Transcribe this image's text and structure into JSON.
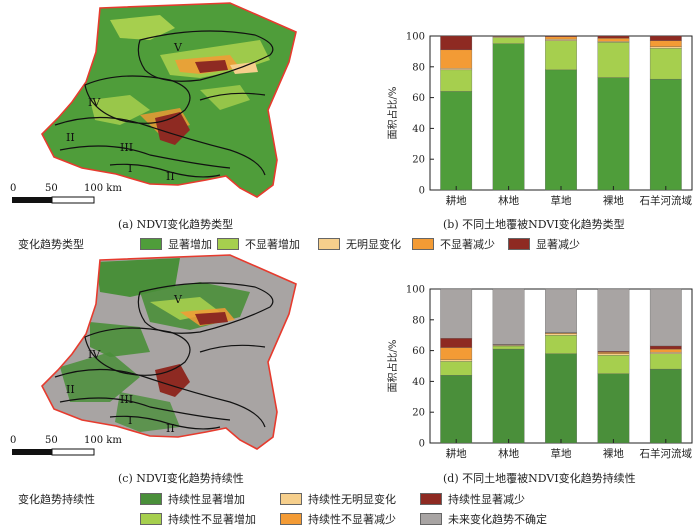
{
  "colors": {
    "sig_inc": "#4f9d3a",
    "insig_inc": "#a6cf4e",
    "nochange": "#f6cf8c",
    "insig_dec": "#f39b35",
    "sig_dec": "#8e2a22",
    "pers_sig_inc": "#4a8f3a",
    "pers_insig_inc": "#a6cf4e",
    "pers_nochange": "#f6cf8c",
    "pers_insig_dec": "#f39b35",
    "pers_sig_dec": "#8e2a22",
    "undetermined": "#a8a4a3",
    "boundary": "#e63b2e",
    "zone_line": "#111111"
  },
  "maps": [
    {
      "caption": "(a) NDVI变化趋势类型",
      "scale_labels": [
        "0",
        "50",
        "100 km"
      ],
      "zones": [
        "V",
        "IV",
        "II",
        "III",
        "I",
        "II"
      ]
    },
    {
      "caption": "(c) NDVI变化趋势持续性",
      "scale_labels": [
        "0",
        "50",
        "100 km"
      ],
      "zones": [
        "V",
        "IV",
        "II",
        "III",
        "I",
        "II"
      ]
    }
  ],
  "legend1": {
    "title": "变化趋势类型",
    "items": [
      "显著增加",
      "不显著增加",
      "无明显变化",
      "不显著减少",
      "显著减少"
    ]
  },
  "legend2": {
    "title": "变化趋势持续性",
    "items": [
      "持续性显著增加",
      "持续性无明显变化",
      "持续性显著减少",
      "持续性不显著增加",
      "持续性不显著减少",
      "未来变化趋势不确定"
    ]
  },
  "chart_data": [
    {
      "type": "bar",
      "stacked": true,
      "title": "(b) 不同土地覆被NDVI变化趋势类型",
      "ylabel": "面积占比/%",
      "ylim": [
        0,
        100
      ],
      "yticks": [
        "0",
        "20",
        "40",
        "60",
        "80",
        "100"
      ],
      "categories": [
        "耕地",
        "林地",
        "草地",
        "裸地",
        "石羊河流域"
      ],
      "series": [
        {
          "name": "显著增加",
          "values": [
            64,
            95,
            78,
            73,
            72
          ]
        },
        {
          "name": "不显著增加",
          "values": [
            14,
            4,
            19,
            23,
            20
          ]
        },
        {
          "name": "无明显变化",
          "values": [
            1,
            0.5,
            1,
            0.5,
            1
          ]
        },
        {
          "name": "不显著减少",
          "values": [
            12,
            0.3,
            1.5,
            2,
            4
          ]
        },
        {
          "name": "显著减少",
          "values": [
            9,
            0.2,
            0.5,
            1.5,
            3
          ]
        }
      ]
    },
    {
      "type": "bar",
      "stacked": true,
      "title": "(d) 不同土地覆被NDVI变化趋势持续性",
      "ylabel": "面积占比/%",
      "ylim": [
        0,
        100
      ],
      "yticks": [
        "0",
        "20",
        "40",
        "60",
        "80",
        "100"
      ],
      "categories": [
        "耕地",
        "林地",
        "草地",
        "裸地",
        "石羊河流域"
      ],
      "series": [
        {
          "name": "持续性显著增加",
          "values": [
            44,
            61,
            58,
            45,
            48
          ]
        },
        {
          "name": "持续性不显著增加",
          "values": [
            9,
            2,
            12,
            12,
            10
          ]
        },
        {
          "name": "持续性无明显变化",
          "values": [
            1,
            0.5,
            1,
            1,
            1
          ]
        },
        {
          "name": "持续性不显著减少",
          "values": [
            8,
            0.3,
            0.5,
            1,
            2
          ]
        },
        {
          "name": "持续性显著减少",
          "values": [
            6,
            0.2,
            0.2,
            0.5,
            2
          ]
        },
        {
          "name": "未来变化趋势不确定",
          "values": [
            32,
            36,
            28.3,
            40.5,
            37
          ]
        }
      ]
    }
  ]
}
